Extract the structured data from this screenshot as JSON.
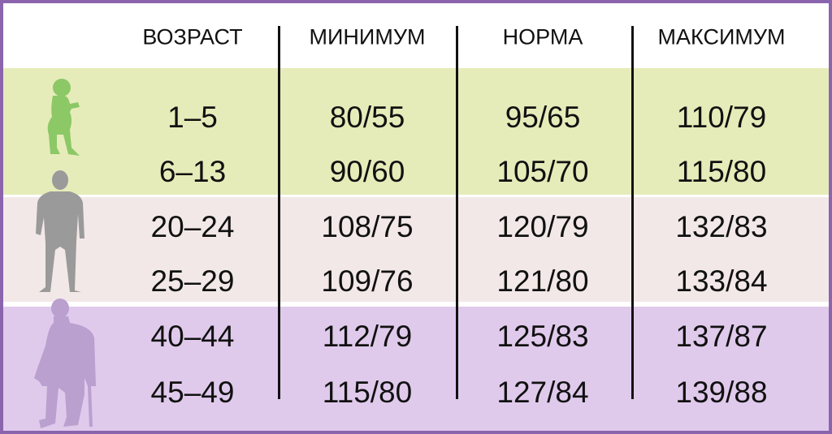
{
  "headers": [
    "ВОЗРАСТ",
    "МИНИМУМ",
    "НОРМА",
    "МАКСИМУМ"
  ],
  "rows": [
    {
      "age": "1–5",
      "min": "80/55",
      "norm": "95/65",
      "max": "110/79"
    },
    {
      "age": "6–13",
      "min": "90/60",
      "norm": "105/70",
      "max": "115/80"
    },
    {
      "age": "20–24",
      "min": "108/75",
      "norm": "120/79",
      "max": "132/83"
    },
    {
      "age": "25–29",
      "min": "109/76",
      "norm": "121/80",
      "max": "133/84"
    },
    {
      "age": "40–44",
      "min": "112/79",
      "norm": "125/83",
      "max": "137/87"
    },
    {
      "age": "45–49",
      "min": "115/80",
      "norm": "127/84",
      "max": "139/88"
    }
  ],
  "colors": {
    "border": "#8a64ad",
    "child_band": "#e6ecb9",
    "adult_band": "#f3e8e8",
    "senior_band": "#e0caec",
    "child_icon": "#8cc866",
    "adult_icon": "#9a9a9a",
    "senior_icon": "#b9a0cf"
  }
}
